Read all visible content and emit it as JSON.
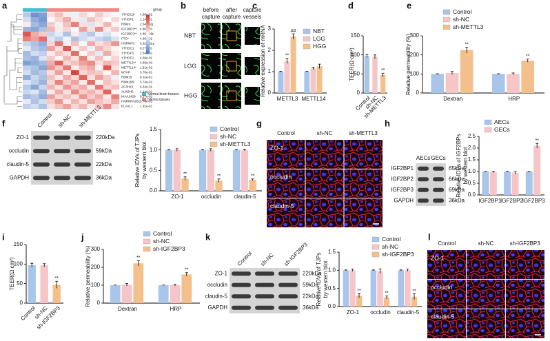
{
  "panel_labels": [
    "a",
    "b",
    "c",
    "d",
    "e",
    "f",
    "g",
    "h",
    "i",
    "j",
    "k",
    "l"
  ],
  "chart_data": [
    {
      "type": "heatmap",
      "legend_title": "group",
      "rows": [
        "YTHDC2*",
        "YTHDF1",
        "RBMX",
        "IGF2BP3**",
        "IGF2BP2**",
        "FTO*",
        "HNRNPC",
        "YTHDC1",
        "YTHDF3",
        "YTHDF2",
        "METTL3**",
        "METTL14*",
        "WTAP",
        "RBM15",
        "RBM15B",
        "ZC3H13",
        "ALKBH5",
        "KIAA1429",
        "HNRNPA2B1",
        "ELAVL1"
      ],
      "row_pvalues": [
        "4.86e-02",
        "1.14e-01",
        "2.54e-01",
        "4.86e-03",
        "4.86e-03",
        "4.86e-02",
        "6.32e-01",
        "9.27e-01",
        "2.54e-01",
        "4.58e-01",
        "4.86e-03",
        "1.91e-02",
        "3.76e-01",
        "8.52e-01",
        "5.74e-01",
        "6.32e-01",
        "1.14e-01",
        "9.27e-01",
        "5.74e-01",
        "1.91e-01"
      ],
      "groups": [
        {
          "name": "Normal brain tissues",
          "color": "#3fc1cf",
          "count": 3
        },
        {
          "name": "Glioma tissues",
          "color": "#f08a84",
          "count": 9
        }
      ],
      "colorscale": [
        "#4a78c2",
        "#ffffff",
        "#d73027"
      ],
      "zlim": [
        -2,
        2
      ],
      "zticks": [
        -1,
        0,
        1
      ],
      "values": [
        [
          -0.8,
          -1.6,
          -1.4,
          0.3,
          0.6,
          0.2,
          -0.2,
          0.4,
          0.1,
          0.5,
          0.2,
          -0.1
        ],
        [
          -0.5,
          -1.2,
          -1.5,
          0.1,
          0.4,
          0.8,
          0.2,
          -0.3,
          0.6,
          0.3,
          0.0,
          0.4
        ],
        [
          0.2,
          -1.0,
          -1.3,
          0.5,
          -0.2,
          0.6,
          1.2,
          0.3,
          -0.4,
          0.2,
          0.7,
          0.1
        ],
        [
          -1.1,
          -1.3,
          -0.9,
          0.7,
          0.2,
          0.4,
          -0.1,
          0.9,
          0.3,
          1.1,
          0.2,
          0.5
        ],
        [
          1.6,
          0.8,
          0.5,
          -0.6,
          -0.3,
          -0.9,
          0.2,
          -0.5,
          -0.8,
          -0.2,
          -0.4,
          -0.1
        ],
        [
          1.2,
          0.9,
          1.4,
          -0.4,
          -0.7,
          -0.2,
          -0.9,
          -0.5,
          -0.3,
          -0.6,
          -0.8,
          -0.4
        ],
        [
          -0.6,
          -0.9,
          -1.2,
          0.4,
          1.3,
          0.2,
          0.6,
          -0.1,
          0.8,
          0.3,
          0.5,
          1.0
        ],
        [
          -0.3,
          -0.8,
          -1.0,
          0.9,
          0.3,
          1.6,
          0.2,
          0.5,
          -0.2,
          0.7,
          0.4,
          0.1
        ],
        [
          -1.0,
          -0.5,
          -0.7,
          0.2,
          0.6,
          0.3,
          1.4,
          0.1,
          0.5,
          -0.3,
          0.8,
          0.2
        ],
        [
          -0.9,
          -1.1,
          -0.4,
          0.5,
          0.1,
          0.7,
          0.3,
          1.2,
          0.2,
          0.6,
          -0.1,
          0.4
        ],
        [
          -1.4,
          -1.2,
          -1.0,
          0.8,
          1.5,
          0.4,
          0.6,
          0.9,
          1.1,
          0.3,
          0.7,
          0.5
        ],
        [
          -0.7,
          -0.9,
          -1.3,
          1.0,
          0.5,
          1.3,
          0.2,
          0.6,
          0.8,
          0.1,
          1.6,
          0.3
        ],
        [
          -0.5,
          -1.0,
          -0.8,
          0.3,
          0.9,
          0.2,
          1.8,
          0.4,
          0.6,
          0.5,
          0.1,
          0.7
        ],
        [
          -1.2,
          -0.6,
          -0.9,
          0.6,
          0.2,
          0.8,
          0.4,
          1.5,
          0.3,
          0.9,
          0.5,
          -0.2
        ],
        [
          -0.4,
          -0.7,
          -1.1,
          0.4,
          1.2,
          0.5,
          0.9,
          0.2,
          1.4,
          0.1,
          0.6,
          0.3
        ],
        [
          -0.8,
          -1.3,
          -0.6,
          0.7,
          0.3,
          1.0,
          0.5,
          0.8,
          0.2,
          1.3,
          0.4,
          0.6
        ],
        [
          -0.6,
          -0.4,
          -1.0,
          0.2,
          0.8,
          0.3,
          1.1,
          0.5,
          0.7,
          0.4,
          1.5,
          0.1
        ],
        [
          -1.0,
          -0.8,
          -1.2,
          0.9,
          0.4,
          0.6,
          0.3,
          1.0,
          0.5,
          0.8,
          0.2,
          1.2
        ],
        [
          -0.3,
          -0.9,
          -0.5,
          0.5,
          1.0,
          0.2,
          0.7,
          0.3,
          0.9,
          0.6,
          0.4,
          0.8
        ],
        [
          -0.7,
          -0.5,
          -0.9,
          0.3,
          0.6,
          0.9,
          0.4,
          0.7,
          0.2,
          0.5,
          1.1,
          0.3
        ]
      ]
    },
    {
      "type": "bar",
      "ylabel": "Relative expression of mRNA",
      "categories": [
        "METTL3",
        "METTL14"
      ],
      "series": [
        {
          "name": "NBT",
          "color": "#a9c6ea",
          "values": [
            1,
            1
          ],
          "errors": [
            0.02,
            0.02
          ],
          "significance": [
            null,
            null
          ]
        },
        {
          "name": "LGG",
          "color": "#f5c5c8",
          "values": [
            1.5,
            1.15
          ],
          "errors": [
            0.12,
            0.05
          ],
          "significance": [
            "**",
            null
          ]
        },
        {
          "name": "HGG",
          "color": "#f3c08c",
          "values": [
            2.65,
            1.25
          ],
          "errors": [
            0.12,
            0.1
          ],
          "significance": [
            "##",
            null
          ]
        }
      ],
      "ylim": [
        0,
        3
      ],
      "yticks": [
        0,
        1,
        2,
        3
      ]
    },
    {
      "type": "bar",
      "ylabel": "TEER(Ω·cm²)",
      "categories": [
        "Control",
        "sh-NC",
        "sh-METTL3"
      ],
      "rotate_labels": true,
      "values": [
        97,
        95,
        47
      ],
      "errors": [
        4,
        5,
        5
      ],
      "colors": [
        "#a9c6ea",
        "#f5c5c8",
        "#f3c08c"
      ],
      "significance": [
        null,
        null,
        "**"
      ],
      "ylim": [
        0,
        150
      ],
      "yticks": [
        0,
        50,
        100,
        150
      ]
    },
    {
      "type": "bar",
      "ylabel": "Relative permeability (%)",
      "categories": [
        "Dextran",
        "HRP"
      ],
      "series": [
        {
          "name": "Control",
          "color": "#a9c6ea",
          "values": [
            100,
            100
          ],
          "errors": [
            1,
            1
          ],
          "significance": [
            null,
            null
          ]
        },
        {
          "name": "sh-NC",
          "color": "#f5c5c8",
          "values": [
            105,
            100
          ],
          "errors": [
            8,
            5
          ],
          "significance": [
            null,
            null
          ]
        },
        {
          "name": "sh-METTL3",
          "color": "#f3c08c",
          "values": [
            225,
            170
          ],
          "errors": [
            15,
            8
          ],
          "significance": [
            "**",
            "**"
          ]
        }
      ],
      "ylim": [
        0,
        300
      ],
      "yticks": [
        0,
        100,
        200,
        300
      ]
    },
    {
      "type": "bar",
      "ylabel": [
        "Relative IDVs of TJPs",
        "by western blot"
      ],
      "categories": [
        "ZO-1",
        "occludin",
        "claudin-5"
      ],
      "series": [
        {
          "name": "Control",
          "color": "#a9c6ea",
          "values": [
            1,
            1,
            1
          ],
          "errors": [
            0.01,
            0.01,
            0.01
          ],
          "significance": [
            null,
            null,
            null
          ]
        },
        {
          "name": "sh-NC",
          "color": "#f5c5c8",
          "values": [
            1,
            1,
            1
          ],
          "errors": [
            0.03,
            0.03,
            0.02
          ],
          "significance": [
            null,
            null,
            null
          ]
        },
        {
          "name": "sh-METTL3",
          "color": "#f3c08c",
          "values": [
            0.3,
            0.25,
            0.27
          ],
          "errors": [
            0.04,
            0.04,
            0.02
          ],
          "significance": [
            "**",
            "**",
            "**"
          ]
        }
      ],
      "ylim": [
        0,
        1.5
      ],
      "yticks": [
        {
          "value": 0,
          "label": "0.0"
        },
        0.5,
        {
          "value": 1,
          "label": "1.0"
        },
        1.5
      ]
    },
    {
      "type": "bar",
      "ylabel": [
        "Relative IDVs of IGF2BPs",
        "by western blot"
      ],
      "categories": [
        "IGF2BP1",
        "IGF2BP2",
        "IGF2BP3"
      ],
      "series": [
        {
          "name": "AECs",
          "color": "#a9c6ea",
          "values": [
            1,
            1,
            1
          ],
          "errors": [
            0.01,
            0.01,
            0.01
          ],
          "significance": [
            null,
            null,
            null
          ]
        },
        {
          "name": "GECs",
          "color": "#f5c5c8",
          "values": [
            0.98,
            0.95,
            2.1
          ],
          "errors": [
            0.03,
            0.05,
            0.1
          ],
          "significance": [
            null,
            null,
            "**"
          ]
        }
      ],
      "ylim": [
        0,
        2.5
      ],
      "yticks": [
        {
          "value": 0,
          "label": "0.0"
        },
        0.5,
        {
          "value": 1,
          "label": "1.0"
        },
        1.5,
        {
          "value": 2,
          "label": "2.0"
        },
        2.5
      ]
    },
    {
      "type": "bar",
      "ylabel": "TEER(Ω cm²)",
      "categories": [
        "Control",
        "sh-NC",
        "sh-IGF2BP3"
      ],
      "rotate_labels": true,
      "values": [
        97,
        97,
        47
      ],
      "errors": [
        5,
        4,
        9
      ],
      "colors": [
        "#a9c6ea",
        "#f5c5c8",
        "#f3c08c"
      ],
      "significance": [
        null,
        null,
        "**"
      ],
      "ylim": [
        0,
        150
      ],
      "yticks": [
        0,
        50,
        100,
        150
      ]
    },
    {
      "type": "bar",
      "ylabel": "Relative permeability (%)",
      "categories": [
        "Dextran",
        "HRP"
      ],
      "series": [
        {
          "name": "Control",
          "color": "#a9c6ea",
          "values": [
            100,
            100
          ],
          "errors": [
            1,
            1
          ],
          "significance": [
            null,
            null
          ]
        },
        {
          "name": "sh-NC",
          "color": "#f5c5c8",
          "values": [
            103,
            100
          ],
          "errors": [
            7,
            4
          ],
          "significance": [
            null,
            null
          ]
        },
        {
          "name": "sh-IGF2BP3",
          "color": "#f3c08c",
          "values": [
            222,
            160
          ],
          "errors": [
            15,
            10
          ],
          "significance": [
            "**",
            "**"
          ]
        }
      ],
      "ylim": [
        0,
        300
      ],
      "yticks": [
        0,
        100,
        200,
        300
      ]
    },
    {
      "type": "bar",
      "ylabel": [
        "Relative IDVs of TJPs",
        "by western blot"
      ],
      "categories": [
        "ZO-1",
        "occludin",
        "claudin-5"
      ],
      "series": [
        {
          "name": "Control",
          "color": "#a9c6ea",
          "values": [
            1,
            1,
            1
          ],
          "errors": [
            0.01,
            0.01,
            0.01
          ],
          "significance": [
            null,
            null,
            null
          ]
        },
        {
          "name": "sh-NC",
          "color": "#f5c5c8",
          "values": [
            1,
            0.98,
            1
          ],
          "errors": [
            0.03,
            0.06,
            0.03
          ],
          "significance": [
            null,
            null,
            null
          ]
        },
        {
          "name": "sh-IGF2BP3",
          "color": "#f3c08c",
          "values": [
            0.3,
            0.25,
            0.27
          ],
          "errors": [
            0.06,
            0.04,
            0.08
          ],
          "significance": [
            "**",
            "**",
            "**"
          ]
        }
      ],
      "ylim": [
        0,
        1.5
      ],
      "yticks": [
        {
          "value": 0,
          "label": "0.0"
        },
        0.5,
        {
          "value": 1,
          "label": "1.0"
        },
        1.5
      ]
    }
  ],
  "capture_images": {
    "columns": [
      [
        "before",
        "capture"
      ],
      [
        "after",
        "capture"
      ],
      [
        "capture",
        "vessels"
      ]
    ],
    "rows": [
      "NBT",
      "LGG",
      "HGG"
    ]
  },
  "blots": [
    {
      "columns": [
        "Control",
        "sh-NC",
        "sh-METTL3"
      ],
      "rows": [
        {
          "protein": "ZO-1",
          "size": "220kDa"
        },
        {
          "protein": "occludin",
          "size": "59kDa"
        },
        {
          "protein": "claudin-5",
          "size": "22kDa"
        },
        {
          "protein": "GAPDH",
          "size": "36kDa"
        }
      ]
    },
    {
      "columns": [
        "AECs",
        "GECs"
      ],
      "rows": [
        {
          "protein": "IGF2BP1",
          "size": "65kDa"
        },
        {
          "protein": "IGF2BP2",
          "size": "66kDa"
        },
        {
          "protein": "IGF2BP3",
          "size": "69kDa"
        },
        {
          "protein": "GAPDH",
          "size": "36kDa"
        }
      ]
    },
    {
      "columns": [
        "Control",
        "sh-NC",
        "sh-IGF2BP3"
      ],
      "rows": [
        {
          "protein": "ZO-1",
          "size": "220kDa"
        },
        {
          "protein": "occludin",
          "size": "59kDa"
        },
        {
          "protein": "claudin-5",
          "size": "22kDa"
        },
        {
          "protein": "GAPDH",
          "size": "36kDa"
        }
      ]
    }
  ],
  "if_images": [
    {
      "columns": [
        "Control",
        "sh-NC",
        "sh-METTL3"
      ],
      "rows": [
        "ZO-1",
        "occludin",
        "claudin-5"
      ]
    },
    {
      "columns": [
        "Control",
        "sh-NC",
        "sh-IGF2BP3"
      ],
      "rows": [
        "ZO-1",
        "occludin",
        "claudin-5"
      ]
    }
  ]
}
